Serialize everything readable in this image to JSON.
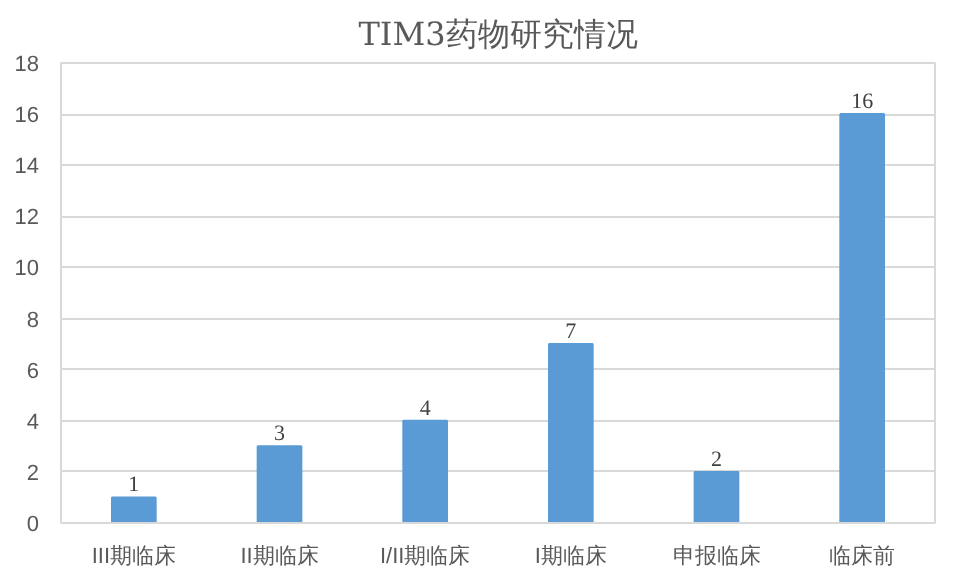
{
  "chart_data": {
    "type": "bar",
    "title": "TIM3药物研究情况",
    "categories": [
      "III期临床",
      "II期临床",
      "I/II期临床",
      "I期临床",
      "申报临床",
      "临床前"
    ],
    "values": [
      1,
      3,
      4,
      7,
      2,
      16
    ],
    "color": "#5b9bd5",
    "ylim": [
      0,
      18
    ],
    "yticks": [
      0,
      2,
      4,
      6,
      8,
      10,
      12,
      14,
      16,
      18
    ],
    "grid": "y",
    "data_labels": true
  }
}
